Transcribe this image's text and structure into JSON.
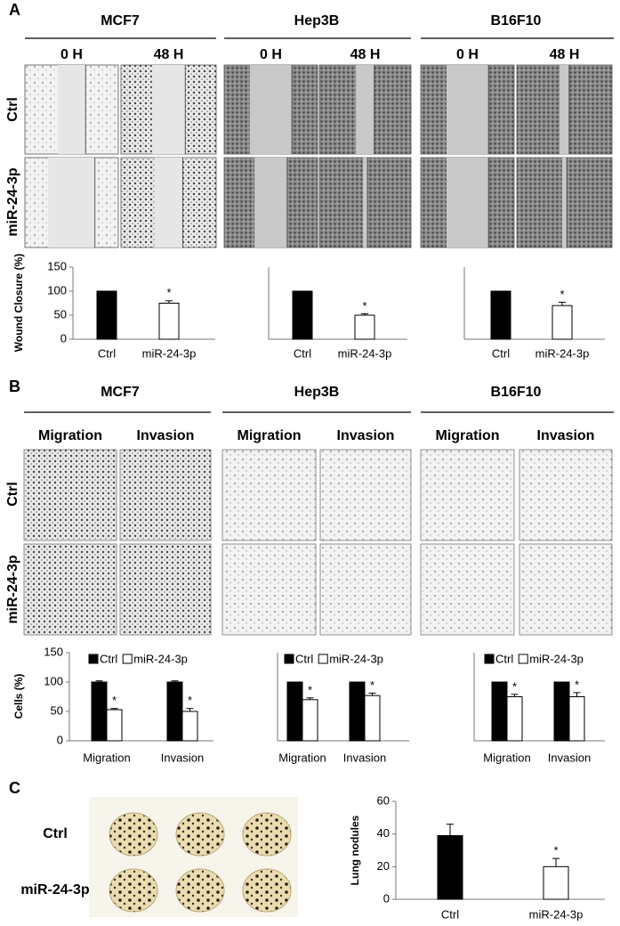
{
  "panel_a": {
    "label": "A",
    "cell_lines": [
      "MCF7",
      "Hep3B",
      "B16F10"
    ],
    "timepoints": [
      "0 H",
      "48 H",
      "0 H",
      "48 H",
      "0 H",
      "48 H"
    ],
    "rows": [
      "Ctrl",
      "miR-24-3p"
    ]
  },
  "panel_b": {
    "label": "B",
    "cell_lines": [
      "MCF7",
      "Hep3B",
      "B16F10"
    ],
    "columns": [
      "Migration",
      "Invasion",
      "Migration",
      "Invasion",
      "Migration",
      "Invasion"
    ],
    "rows": [
      "Ctrl",
      "miR-24-3p"
    ]
  },
  "panel_c": {
    "label": "C",
    "rows": [
      "Ctrl",
      "miR-24-3p"
    ]
  },
  "chart_data": [
    {
      "type": "bar",
      "ylabel": "Wound Closure (%)",
      "categories": [
        "Ctrl",
        "miR-24-3p"
      ],
      "values": [
        100,
        75
      ],
      "errors": [
        0,
        5
      ],
      "colors": [
        "#000000",
        "#ffffff"
      ],
      "annotations": [
        null,
        "*"
      ],
      "ylim": [
        0,
        150
      ],
      "yticks": [
        0,
        50,
        100,
        150
      ]
    },
    {
      "type": "bar",
      "categories": [
        "Ctrl",
        "miR-24-3p"
      ],
      "values": [
        100,
        50
      ],
      "errors": [
        0,
        3
      ],
      "colors": [
        "#000000",
        "#ffffff"
      ],
      "annotations": [
        null,
        "*"
      ],
      "ylim": [
        0,
        150
      ]
    },
    {
      "type": "bar",
      "categories": [
        "Ctrl",
        "miR-24-3p"
      ],
      "values": [
        100,
        70
      ],
      "errors": [
        0,
        7
      ],
      "colors": [
        "#000000",
        "#ffffff"
      ],
      "annotations": [
        null,
        "*"
      ],
      "ylim": [
        0,
        150
      ]
    },
    {
      "type": "grouped_bar",
      "ylabel": "Cells (%)",
      "categories": [
        "Migration",
        "Invasion"
      ],
      "series": [
        {
          "name": "Ctrl",
          "color": "#000000",
          "values": [
            100,
            100
          ],
          "errors": [
            2,
            2
          ],
          "annotations": [
            null,
            null
          ]
        },
        {
          "name": "miR-24-3p",
          "color": "#ffffff",
          "values": [
            53,
            50
          ],
          "errors": [
            2,
            5
          ],
          "annotations": [
            "*",
            "*"
          ]
        }
      ],
      "ylim": [
        0,
        150
      ],
      "yticks": [
        0,
        50,
        100,
        150
      ]
    },
    {
      "type": "grouped_bar",
      "categories": [
        "Migration",
        "Invasion"
      ],
      "series": [
        {
          "name": "Ctrl",
          "color": "#000000",
          "values": [
            100,
            100
          ],
          "errors": [
            0,
            0
          ],
          "annotations": [
            null,
            null
          ]
        },
        {
          "name": "miR-24-3p",
          "color": "#ffffff",
          "values": [
            70,
            77
          ],
          "errors": [
            3,
            4
          ],
          "annotations": [
            "*",
            "*"
          ]
        }
      ],
      "ylim": [
        0,
        150
      ]
    },
    {
      "type": "grouped_bar",
      "categories": [
        "Migration",
        "Invasion"
      ],
      "series": [
        {
          "name": "Ctrl",
          "color": "#000000",
          "values": [
            100,
            100
          ],
          "errors": [
            0,
            0
          ],
          "annotations": [
            null,
            null
          ]
        },
        {
          "name": "miR-24-3p",
          "color": "#ffffff",
          "values": [
            75,
            75
          ],
          "errors": [
            4,
            7
          ],
          "annotations": [
            "*",
            "*"
          ]
        }
      ],
      "ylim": [
        0,
        150
      ]
    },
    {
      "type": "bar",
      "ylabel": "Lung nodules",
      "categories": [
        "Ctrl",
        "miR-24-3p"
      ],
      "values": [
        39,
        20
      ],
      "errors": [
        7,
        5
      ],
      "colors": [
        "#000000",
        "#ffffff"
      ],
      "annotations": [
        null,
        "*"
      ],
      "ylim": [
        0,
        60
      ],
      "yticks": [
        0,
        20,
        40,
        60
      ]
    }
  ]
}
